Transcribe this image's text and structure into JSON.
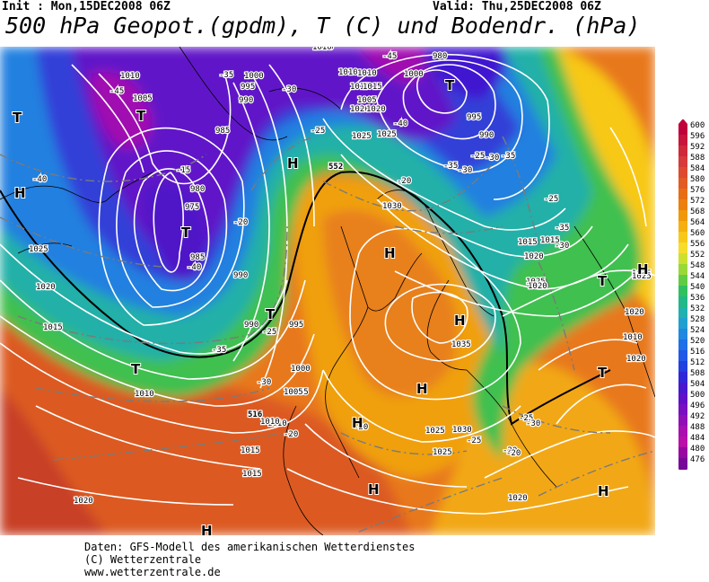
{
  "header": {
    "init_text": "Init : Mon,15DEC2008 06Z",
    "valid_text": "Valid: Thu,25DEC2008 06Z",
    "title": "500 hPa Geopot.(gpdm), T (C) und Bodendr. (hPa)"
  },
  "legend": {
    "values": [
      "600",
      "596",
      "592",
      "588",
      "584",
      "580",
      "576",
      "572",
      "568",
      "564",
      "560",
      "556",
      "552",
      "548",
      "544",
      "540",
      "536",
      "532",
      "528",
      "524",
      "520",
      "516",
      "512",
      "508",
      "504",
      "500",
      "496",
      "492",
      "488",
      "484",
      "480",
      "476"
    ],
    "colors": [
      "#c0003a",
      "#c8143a",
      "#cf283a",
      "#d63a3a",
      "#dd4a30",
      "#e25b22",
      "#e76d14",
      "#ec800c",
      "#f09808",
      "#f5b010",
      "#f8c818",
      "#f7dc2a",
      "#cde030",
      "#9ad83a",
      "#60cc44",
      "#30c060",
      "#20b888",
      "#20b0b0",
      "#20a0d0",
      "#2088e0",
      "#2070e8",
      "#2058e8",
      "#2040e0",
      "#3028d8",
      "#4818d0",
      "#6010c8",
      "#7810c0",
      "#9010b8",
      "#a810b0",
      "#b810a8",
      "#9808a0",
      "#780898"
    ]
  },
  "map": {
    "isobar_labels": [
      "1010",
      "1005",
      "1000",
      "995",
      "990",
      "985",
      "980",
      "975",
      "985",
      "990",
      "995",
      "1000",
      "1005",
      "1010",
      "1015",
      "1020",
      "1025",
      "1030",
      "1035",
      "1025",
      "1020",
      "1015",
      "1010",
      "1005",
      "1000",
      "995",
      "990",
      "980",
      "1015",
      "1020",
      "1025",
      "1020",
      "1015",
      "1025",
      "1030",
      "1025",
      "1020",
      "1015",
      "1010",
      "1020",
      "1010",
      "1015",
      "1020",
      "1025",
      "1000",
      "1010",
      "1015",
      "1020",
      "990",
      "1010",
      "1015",
      "1020",
      "1025",
      "1010",
      "1005"
    ],
    "temp_labels": [
      "-45",
      "-40",
      "-35",
      "-30",
      "-25",
      "-20",
      "-15",
      "-40",
      "-35",
      "-30",
      "-25",
      "-20",
      "-45",
      "-40",
      "-35",
      "-30",
      "-25",
      "-30",
      "-25",
      "-20",
      "-35",
      "-30",
      "-25",
      "-20",
      "-35",
      "-30",
      "-20",
      "-25",
      "-20"
    ],
    "geo_labels": [
      "516",
      "552"
    ],
    "pressure_centers": [
      "T",
      "T",
      "T",
      "T",
      "T",
      "T",
      "T",
      "T",
      "H",
      "H",
      "H",
      "H",
      "H",
      "H",
      "H",
      "H",
      "H",
      "H"
    ]
  },
  "footer": {
    "line1": "Daten: GFS-Modell des amerikanischen Wetterdienstes",
    "line2": "(C) Wetterzentrale",
    "line3": "www.wetterzentrale.de"
  }
}
